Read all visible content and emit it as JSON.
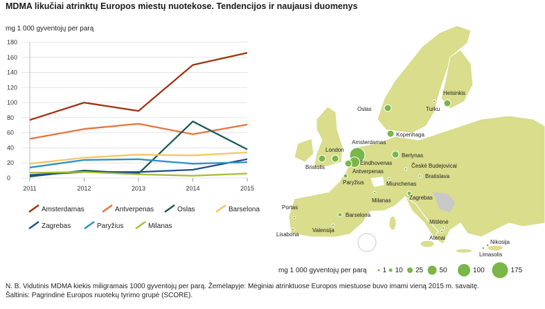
{
  "title": "MDMA likučiai atrinktų Europos miestų nuotekose. Tendencijos ir naujausi duomenys",
  "unit_label": "mg 1 000 gyventojų per parą",
  "chart_data": {
    "type": "line",
    "title": "MDMA likučiai atrinktų Europos miestų nuotekose. Tendencijos ir naujausi duomenys",
    "ylabel": "mg 1 000 gyventojų per parą",
    "xlabel": "",
    "x": [
      "2011",
      "2012",
      "2013",
      "2014",
      "2015"
    ],
    "ylim": [
      0,
      180
    ],
    "yticks": [
      "0",
      "20",
      "40",
      "60",
      "80",
      "100",
      "120",
      "140",
      "160",
      "180"
    ],
    "grid": true,
    "legend_position": "bottom",
    "series": [
      {
        "name": "Amsterdamas",
        "color": "#9e3313",
        "values": [
          77,
          100,
          89,
          150,
          166
        ]
      },
      {
        "name": "Antverpenas",
        "color": "#e8733c",
        "values": [
          52,
          65,
          72,
          58,
          71
        ]
      },
      {
        "name": "Oslas",
        "color": "#1b5a55",
        "values": [
          2,
          10,
          6,
          75,
          38
        ]
      },
      {
        "name": "Barselona",
        "color": "#f5c566",
        "values": [
          19,
          27,
          31,
          30,
          34
        ]
      },
      {
        "name": "Zagrebas",
        "color": "#1f4f8f",
        "values": [
          4,
          8,
          8,
          11,
          25
        ]
      },
      {
        "name": "Paryžius",
        "color": "#2c92c4",
        "values": [
          14,
          24,
          25,
          19,
          21
        ]
      },
      {
        "name": "Milanas",
        "color": "#a7bd3a",
        "values": [
          7,
          8,
          5,
          3,
          6
        ]
      }
    ]
  },
  "map": {
    "cities": [
      {
        "name": "Oslas",
        "size": 2
      },
      {
        "name": "Helsinkis",
        "size": 2
      },
      {
        "name": "Turku",
        "size": 0
      },
      {
        "name": "Kopenhaga",
        "size": 2
      },
      {
        "name": "Amsterdamas",
        "size": 4
      },
      {
        "name": "London",
        "size": 2
      },
      {
        "name": "Bristolis",
        "size": 2
      },
      {
        "name": "Eindhovenas",
        "size": 3
      },
      {
        "name": "Antverpenas",
        "size": 2
      },
      {
        "name": "Berlynas",
        "size": 2
      },
      {
        "name": "České Budejovicai",
        "size": 0
      },
      {
        "name": "Bratislava",
        "size": 0
      },
      {
        "name": "Paryžius",
        "size": 1
      },
      {
        "name": "Miunchenas",
        "size": 0
      },
      {
        "name": "Zagrebas",
        "size": 1
      },
      {
        "name": "Milanas",
        "size": 0
      },
      {
        "name": "Portas",
        "size": 0
      },
      {
        "name": "Barselona",
        "size": 1
      },
      {
        "name": "Lisabona",
        "size": 0
      },
      {
        "name": "Valensija",
        "size": 0
      },
      {
        "name": "Mitilėnė",
        "size": 0
      },
      {
        "name": "Atėnai",
        "size": 0
      },
      {
        "name": "Nikosija",
        "size": 0
      },
      {
        "name": "Limasolis",
        "size": 0
      }
    ],
    "bubble_legend": {
      "label": "mg 1 000 gyventojų per parą",
      "values": [
        "1",
        "10",
        "25",
        "50",
        "100",
        "175"
      ]
    },
    "land_color": "#d9dd8c",
    "bubble_color": "#7ab648"
  },
  "note_line1": "N. B. Vidutinis MDMA kiekis miligramais 1000 gyventojų per parą. Žemėlapyje: Mėginiai atrinktuose Europos miestuose buvo imami vieną 2015 m. savaitę.",
  "note_line2": "Šaltinis: Pagrindinė Europos nuotekų tyrimo grupė (SCORE)."
}
